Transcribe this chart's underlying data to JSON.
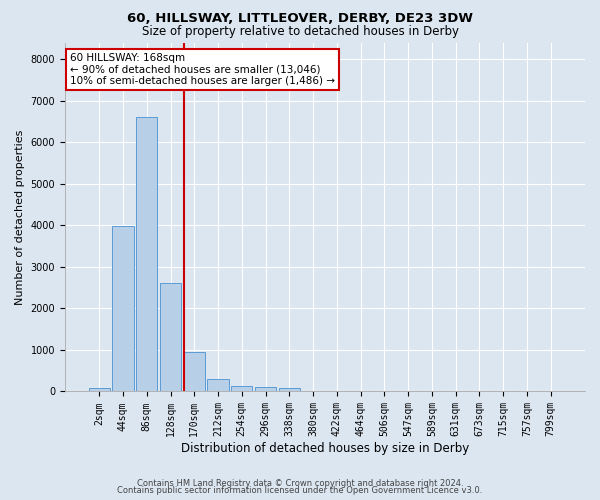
{
  "title_line1": "60, HILLSWAY, LITTLEOVER, DERBY, DE23 3DW",
  "title_line2": "Size of property relative to detached houses in Derby",
  "xlabel": "Distribution of detached houses by size in Derby",
  "ylabel": "Number of detached properties",
  "bar_values": [
    80,
    3980,
    6600,
    2620,
    960,
    310,
    130,
    110,
    90,
    0,
    0,
    0,
    0,
    0,
    0,
    0,
    0,
    0,
    0,
    0
  ],
  "bar_labels": [
    "2sqm",
    "44sqm",
    "86sqm",
    "128sqm",
    "170sqm",
    "212sqm",
    "254sqm",
    "296sqm",
    "338sqm",
    "380sqm",
    "422sqm",
    "464sqm",
    "506sqm",
    "547sqm",
    "589sqm",
    "631sqm",
    "673sqm",
    "715sqm",
    "757sqm",
    "799sqm"
  ],
  "bar_color": "#b8cfe8",
  "bar_edge_color": "#5b9bd5",
  "annotation_line1": "60 HILLSWAY: 168sqm",
  "annotation_line2": "← 90% of detached houses are smaller (13,046)",
  "annotation_line3": "10% of semi-detached houses are larger (1,486) →",
  "annotation_box_color": "#ffffff",
  "annotation_box_edge": "#cc0000",
  "vline_x": 3.58,
  "vline_color": "#cc0000",
  "ylim": [
    0,
    8400
  ],
  "yticks": [
    0,
    1000,
    2000,
    3000,
    4000,
    5000,
    6000,
    7000,
    8000
  ],
  "bg_color": "#dce6f1",
  "plot_bg_color": "#dce6f1",
  "footer_line1": "Contains HM Land Registry data © Crown copyright and database right 2024.",
  "footer_line2": "Contains public sector information licensed under the Open Government Licence v3.0.",
  "title_fontsize": 9.5,
  "subtitle_fontsize": 8.5,
  "xlabel_fontsize": 8.5,
  "ylabel_fontsize": 8,
  "tick_fontsize": 7,
  "annotation_fontsize": 7.5,
  "footer_fontsize": 6
}
